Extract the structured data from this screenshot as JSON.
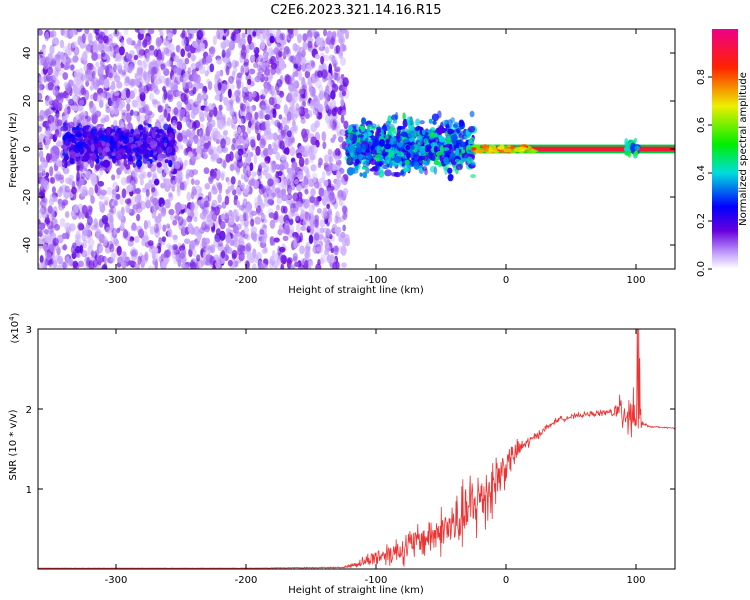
{
  "title": "C2E6.2023.321.14.16.R15",
  "colors": {
    "snr_line": "#ee3333",
    "frame": "#000000",
    "background": "#ffffff"
  },
  "chart_data": [
    {
      "type": "heatmap",
      "name": "spectrogram",
      "xlabel": "Height of straight line (km)",
      "ylabel": "Frequency (Hz)",
      "xlim": [
        -360,
        130
      ],
      "ylim": [
        -50,
        50
      ],
      "x_ticks": [
        -300,
        -200,
        -100,
        0,
        100
      ],
      "x_tick_labels": [
        "-300",
        "-200",
        "-100",
        "0",
        "100"
      ],
      "y_ticks": [
        -40,
        -20,
        0,
        20,
        40
      ],
      "y_tick_labels": [
        "-40",
        "-20",
        "0",
        "20",
        "40"
      ],
      "colorbar": {
        "label": "Normalized spectral amplitude",
        "range": [
          0.0,
          1.0
        ],
        "ticks": [
          0.0,
          0.2,
          0.4,
          0.6,
          0.8
        ],
        "tick_labels": [
          "0.0",
          "0.2",
          "0.4",
          "0.6",
          "0.8"
        ],
        "colormap": "rainbow (white → purple → blue → cyan → green → yellow → red → magenta)"
      },
      "regions": [
        {
          "x_range": [
            -360,
            -122
          ],
          "freq_range": [
            -50,
            50
          ],
          "amplitude": 0.05,
          "description": "broadband noise"
        },
        {
          "x_range": [
            -340,
            -255
          ],
          "freq_range": [
            -5,
            8
          ],
          "amplitude": 0.2,
          "description": "enhanced band"
        },
        {
          "x_range": [
            -122,
            -25
          ],
          "freq_range": [
            -8,
            10
          ],
          "amplitude": 0.35,
          "description": "scattered signal"
        },
        {
          "x_range": [
            -25,
            130
          ],
          "freq_range": [
            -1,
            1
          ],
          "amplitude": 0.9,
          "description": "carrier line"
        },
        {
          "x_range": [
            92,
            102
          ],
          "freq_range": [
            -3,
            3
          ],
          "amplitude": 0.4,
          "description": "line broadening"
        }
      ],
      "grid": false
    },
    {
      "type": "line",
      "name": "snr",
      "xlabel": "Height of straight line (km)",
      "ylabel": "SNR (10 * v/v)",
      "y_multiplier_label": "(x10",
      "y_multiplier_exp": "4",
      "y_multiplier_close": ")",
      "xlim": [
        -360,
        130
      ],
      "ylim": [
        0,
        3
      ],
      "x_ticks": [
        -300,
        -200,
        -100,
        0,
        100
      ],
      "x_tick_labels": [
        "-300",
        "-200",
        "-100",
        "0",
        "100"
      ],
      "y_ticks": [
        1,
        2,
        3
      ],
      "y_tick_labels": [
        "1",
        "2",
        "3"
      ],
      "series": [
        {
          "x": [
            -360,
            -300,
            -200,
            -125,
            -115,
            -100,
            -80,
            -60,
            -40,
            -25,
            -10,
            0,
            10,
            20,
            30,
            40,
            60,
            80,
            90,
            95,
            100,
            102,
            105,
            110,
            120,
            130
          ],
          "y": [
            0.01,
            0.01,
            0.01,
            0.02,
            0.06,
            0.15,
            0.25,
            0.4,
            0.55,
            0.78,
            1.05,
            1.3,
            1.5,
            1.62,
            1.75,
            1.87,
            1.93,
            1.96,
            1.97,
            1.98,
            1.98,
            1.95,
            1.82,
            1.78,
            1.77,
            1.76
          ],
          "noise_amplitude": [
            0.003,
            0.003,
            0.003,
            0.01,
            0.05,
            0.15,
            0.25,
            0.3,
            0.45,
            0.6,
            0.55,
            0.3,
            0.15,
            0.08,
            0.05,
            0.04,
            0.04,
            0.05,
            0.3,
            0.55,
            0.6,
            0.45,
            0.04,
            0.01,
            0.01,
            0.01
          ]
        }
      ],
      "grid": false
    }
  ]
}
